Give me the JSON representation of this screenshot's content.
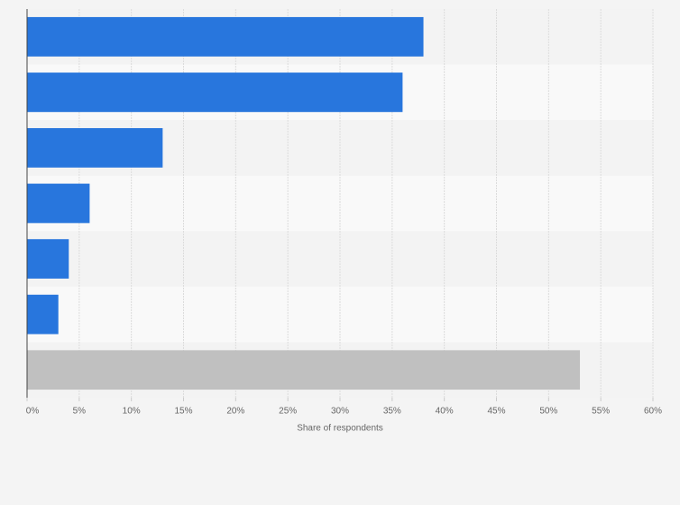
{
  "chart_data": {
    "type": "hbar",
    "categories": [
      null,
      null,
      null,
      null,
      null,
      null,
      null
    ],
    "values": [
      38,
      36,
      13,
      6,
      4,
      3,
      53
    ],
    "colors": [
      "#2876dd",
      "#2876dd",
      "#2876dd",
      "#2876dd",
      "#2876dd",
      "#2876dd",
      "#c0c0c0"
    ],
    "xlabel": "Share of respondents",
    "xlim": [
      0,
      60
    ],
    "xticks": [
      {
        "value": 0,
        "label": "0%"
      },
      {
        "value": 5,
        "label": "5%"
      },
      {
        "value": 10,
        "label": "10%"
      },
      {
        "value": 15,
        "label": "15%"
      },
      {
        "value": 20,
        "label": "20%"
      },
      {
        "value": 25,
        "label": "25%"
      },
      {
        "value": 30,
        "label": "30%"
      },
      {
        "value": 35,
        "label": "35%"
      },
      {
        "value": 40,
        "label": "40%"
      },
      {
        "value": 45,
        "label": "45%"
      },
      {
        "value": 50,
        "label": "50%"
      },
      {
        "value": 55,
        "label": "55%"
      },
      {
        "value": 60,
        "label": "60%"
      }
    ],
    "grid": true
  }
}
